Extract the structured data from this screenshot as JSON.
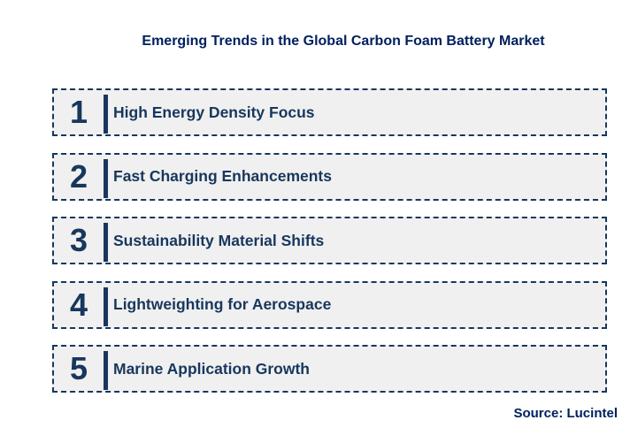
{
  "header": {
    "title": "Emerging Trends in the Global Carbon Foam Battery Market"
  },
  "trends": [
    {
      "number": "1",
      "label": "High Energy Density Focus"
    },
    {
      "number": "2",
      "label": "Fast Charging Enhancements"
    },
    {
      "number": "3",
      "label": "Sustainability Material Shifts"
    },
    {
      "number": "4",
      "label": "Lightweighting for Aerospace"
    },
    {
      "number": "5",
      "label": "Marine Application Growth"
    }
  ],
  "footer": {
    "source": "Source: Lucintel"
  },
  "colors": {
    "navy": "#17375D",
    "title-blue": "#002060",
    "box-fill": "#F0F0F0"
  }
}
